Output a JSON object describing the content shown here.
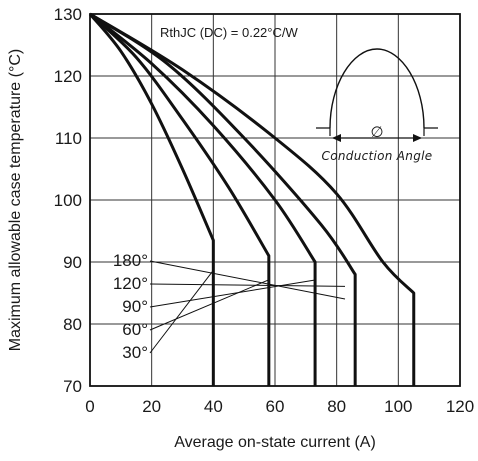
{
  "chart_data": {
    "type": "line",
    "title": "",
    "xlabel": "Average on-state current (A)",
    "ylabel": "Maximum allowable case temperature (°C)",
    "xlim": [
      0,
      120
    ],
    "ylim": [
      70,
      130
    ],
    "x_ticks": [
      "0",
      "20",
      "40",
      "60",
      "80",
      "100",
      "120"
    ],
    "y_ticks": [
      "70",
      "80",
      "90",
      "100",
      "110",
      "120",
      "130"
    ],
    "grid": true,
    "annotation": "RthJC (DC) = 0.22°C/W",
    "inset_label": "Conduction  Angle",
    "inset_symbol": "∅",
    "series": [
      {
        "name": "30°",
        "points": [
          [
            0,
            130
          ],
          [
            10,
            124
          ],
          [
            20,
            115.5
          ],
          [
            30,
            105
          ],
          [
            40,
            93.5
          ],
          [
            40,
            70
          ]
        ]
      },
      {
        "name": "60°",
        "points": [
          [
            0,
            130
          ],
          [
            15,
            123
          ],
          [
            30,
            113
          ],
          [
            45,
            102
          ],
          [
            58,
            91
          ],
          [
            58,
            70
          ]
        ]
      },
      {
        "name": "90°",
        "points": [
          [
            0,
            130
          ],
          [
            20,
            122
          ],
          [
            40,
            112
          ],
          [
            60,
            100
          ],
          [
            73,
            90
          ],
          [
            73,
            70
          ]
        ]
      },
      {
        "name": "120°",
        "points": [
          [
            0,
            130
          ],
          [
            25,
            122
          ],
          [
            50,
            110
          ],
          [
            75,
            96
          ],
          [
            86,
            88
          ],
          [
            86,
            70
          ]
        ]
      },
      {
        "name": "180°",
        "points": [
          [
            0,
            130
          ],
          [
            30,
            121
          ],
          [
            60,
            110
          ],
          [
            80,
            101
          ],
          [
            95,
            90
          ],
          [
            105,
            85
          ],
          [
            105,
            70
          ]
        ]
      }
    ],
    "legend_order": [
      "180°",
      "120°",
      "90°",
      "60°",
      "30°"
    ],
    "colors": {
      "curve": "#111111",
      "grid": "#333333",
      "text": "#1a1a1a"
    }
  }
}
